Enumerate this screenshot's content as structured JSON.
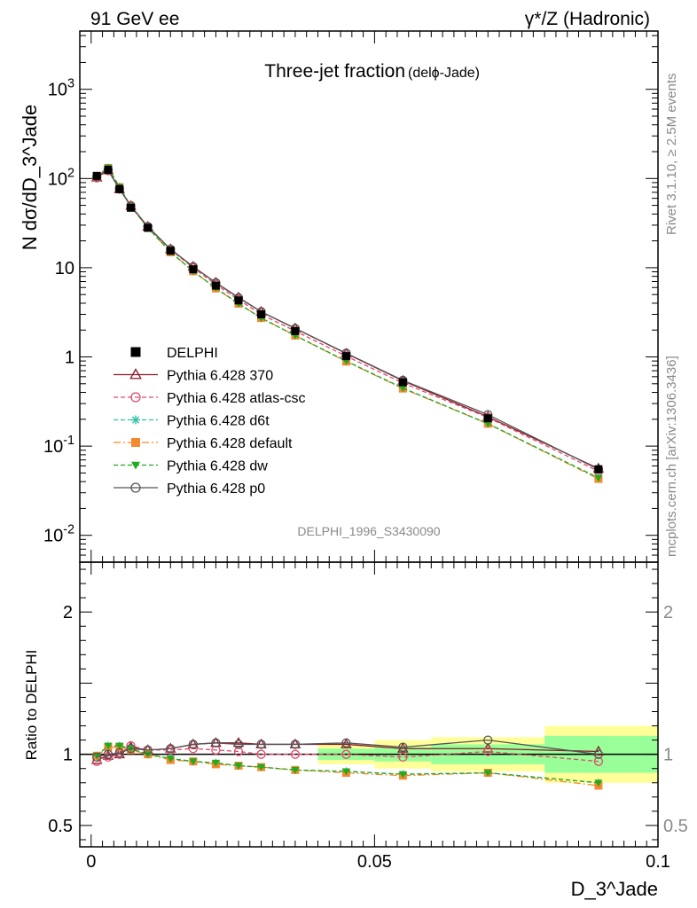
{
  "header": {
    "left": "91 GeV ee",
    "right": "γ*/Z (Hadronic)"
  },
  "side_labels": {
    "rivet": "Rivet 3.1.10, ≥ 2.5M events",
    "mcplots": "mcplots.cern.ch [arXiv:1306.3436]"
  },
  "chart_data": {
    "type": "line",
    "title": "Three-jet fraction",
    "title_suffix": "(delϕ-Jade)",
    "analysis_id": "DELPHI_1996_S3430090",
    "xlabel": "D_3^Jade",
    "ylabel": "N dσ/dD_3^Jade",
    "ratio_ylabel": "Ratio to DELPHI",
    "xlim": [
      -0.002,
      0.1
    ],
    "ylim": [
      0.005,
      4500
    ],
    "y_scale": "log",
    "ratio_ylim": [
      0.35,
      2.35
    ],
    "legend_position": "lower-left",
    "x_ticks": [
      {
        "value": 0,
        "label": "0"
      },
      {
        "value": 0.05,
        "label": "0.05"
      },
      {
        "value": 0.1,
        "label": "0.1"
      }
    ],
    "y_tick_labels": [
      {
        "value": 0.01,
        "label": "10^-2"
      },
      {
        "value": 0.1,
        "label": "10^-1"
      },
      {
        "value": 1,
        "label": "1"
      },
      {
        "value": 10,
        "label": "10"
      },
      {
        "value": 100,
        "label": "10^2"
      },
      {
        "value": 1000,
        "label": "10^3"
      }
    ],
    "ratio_ticks": [
      {
        "value": 0.5,
        "label": "0.5"
      },
      {
        "value": 1,
        "label": "1"
      },
      {
        "value": 2,
        "label": "2"
      }
    ],
    "x": [
      0.001,
      0.003,
      0.005,
      0.007,
      0.01,
      0.014,
      0.018,
      0.022,
      0.026,
      0.03,
      0.036,
      0.045,
      0.055,
      0.07,
      0.0895
    ],
    "data": {
      "name": "DELPHI",
      "color": "#000000",
      "values": [
        107,
        125,
        76,
        47,
        28,
        15.5,
        9.6,
        6.3,
        4.3,
        3.0,
        1.95,
        1.02,
        0.52,
        0.205,
        0.055
      ]
    },
    "bands": [
      {
        "x0": 0.04,
        "x1": 0.05,
        "inner": 0.04,
        "outer": 0.07
      },
      {
        "x0": 0.05,
        "x1": 0.06,
        "inner": 0.05,
        "outer": 0.1
      },
      {
        "x0": 0.06,
        "x1": 0.08,
        "inner": 0.07,
        "outer": 0.12
      },
      {
        "x0": 0.08,
        "x1": 0.1,
        "inner": 0.13,
        "outer": 0.2
      }
    ],
    "band_colors": {
      "inner": "#99ff99",
      "outer": "#ffff99"
    },
    "series": [
      {
        "name": "Pythia 6.428 370",
        "color": "#8b1a2a",
        "dash": "",
        "marker": "triangle-open",
        "ratio": [
          0.96,
          0.99,
          1.0,
          1.05,
          1.03,
          1.04,
          1.07,
          1.08,
          1.08,
          1.07,
          1.07,
          1.07,
          1.04,
          1.04,
          1.02
        ]
      },
      {
        "name": "Pythia 6.428 atlas-csc",
        "color": "#e34a6a",
        "dash": "5,3",
        "marker": "circle-open",
        "ratio": [
          0.95,
          0.98,
          1.0,
          1.06,
          1.03,
          1.03,
          1.04,
          1.03,
          1.02,
          1.0,
          1.0,
          1.0,
          0.98,
          1.02,
          0.95
        ]
      },
      {
        "name": "Pythia 6.428 d6t",
        "color": "#2fc4a4",
        "dash": "5,3",
        "marker": "star",
        "ratio": [
          0.99,
          1.06,
          1.06,
          1.04,
          1.0,
          0.97,
          0.95,
          0.94,
          0.92,
          0.91,
          0.89,
          0.88,
          0.86,
          0.87,
          0.8
        ]
      },
      {
        "name": "Pythia 6.428 default",
        "color": "#f5892e",
        "dash": "8,3,2,3",
        "marker": "square",
        "ratio": [
          0.99,
          1.05,
          1.05,
          1.03,
          1.0,
          0.96,
          0.95,
          0.93,
          0.92,
          0.91,
          0.89,
          0.87,
          0.85,
          0.87,
          0.78
        ]
      },
      {
        "name": "Pythia 6.428 dw",
        "color": "#22aa22",
        "dash": "5,3",
        "marker": "triangle-down",
        "ratio": [
          0.99,
          1.06,
          1.06,
          1.04,
          1.0,
          0.97,
          0.95,
          0.94,
          0.92,
          0.91,
          0.89,
          0.88,
          0.86,
          0.87,
          0.8
        ]
      },
      {
        "name": "Pythia 6.428 p0",
        "color": "#555555",
        "dash": "",
        "marker": "circle-open",
        "ratio": [
          0.98,
          1.0,
          1.01,
          1.04,
          1.03,
          1.04,
          1.07,
          1.08,
          1.07,
          1.07,
          1.07,
          1.08,
          1.05,
          1.1,
          1.0
        ]
      }
    ]
  }
}
